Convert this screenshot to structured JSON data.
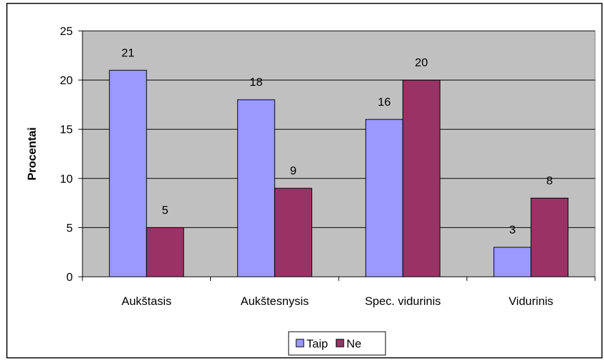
{
  "chart_data": {
    "type": "bar",
    "y_label": "Procentai",
    "categories": [
      "Aukštasis",
      "Aukštesnysis",
      "Spec. vidurinis",
      "Vidurinis"
    ],
    "series": [
      {
        "name": "Taip",
        "color": "#9999ff",
        "values": [
          21,
          18,
          16,
          3
        ]
      },
      {
        "name": "Ne",
        "color": "#993366",
        "values": [
          5,
          9,
          20,
          8
        ]
      }
    ],
    "ylim": [
      0,
      25
    ],
    "yticks": [
      0,
      5,
      10,
      15,
      20,
      25
    ],
    "grid": true,
    "legend": "bottom"
  }
}
